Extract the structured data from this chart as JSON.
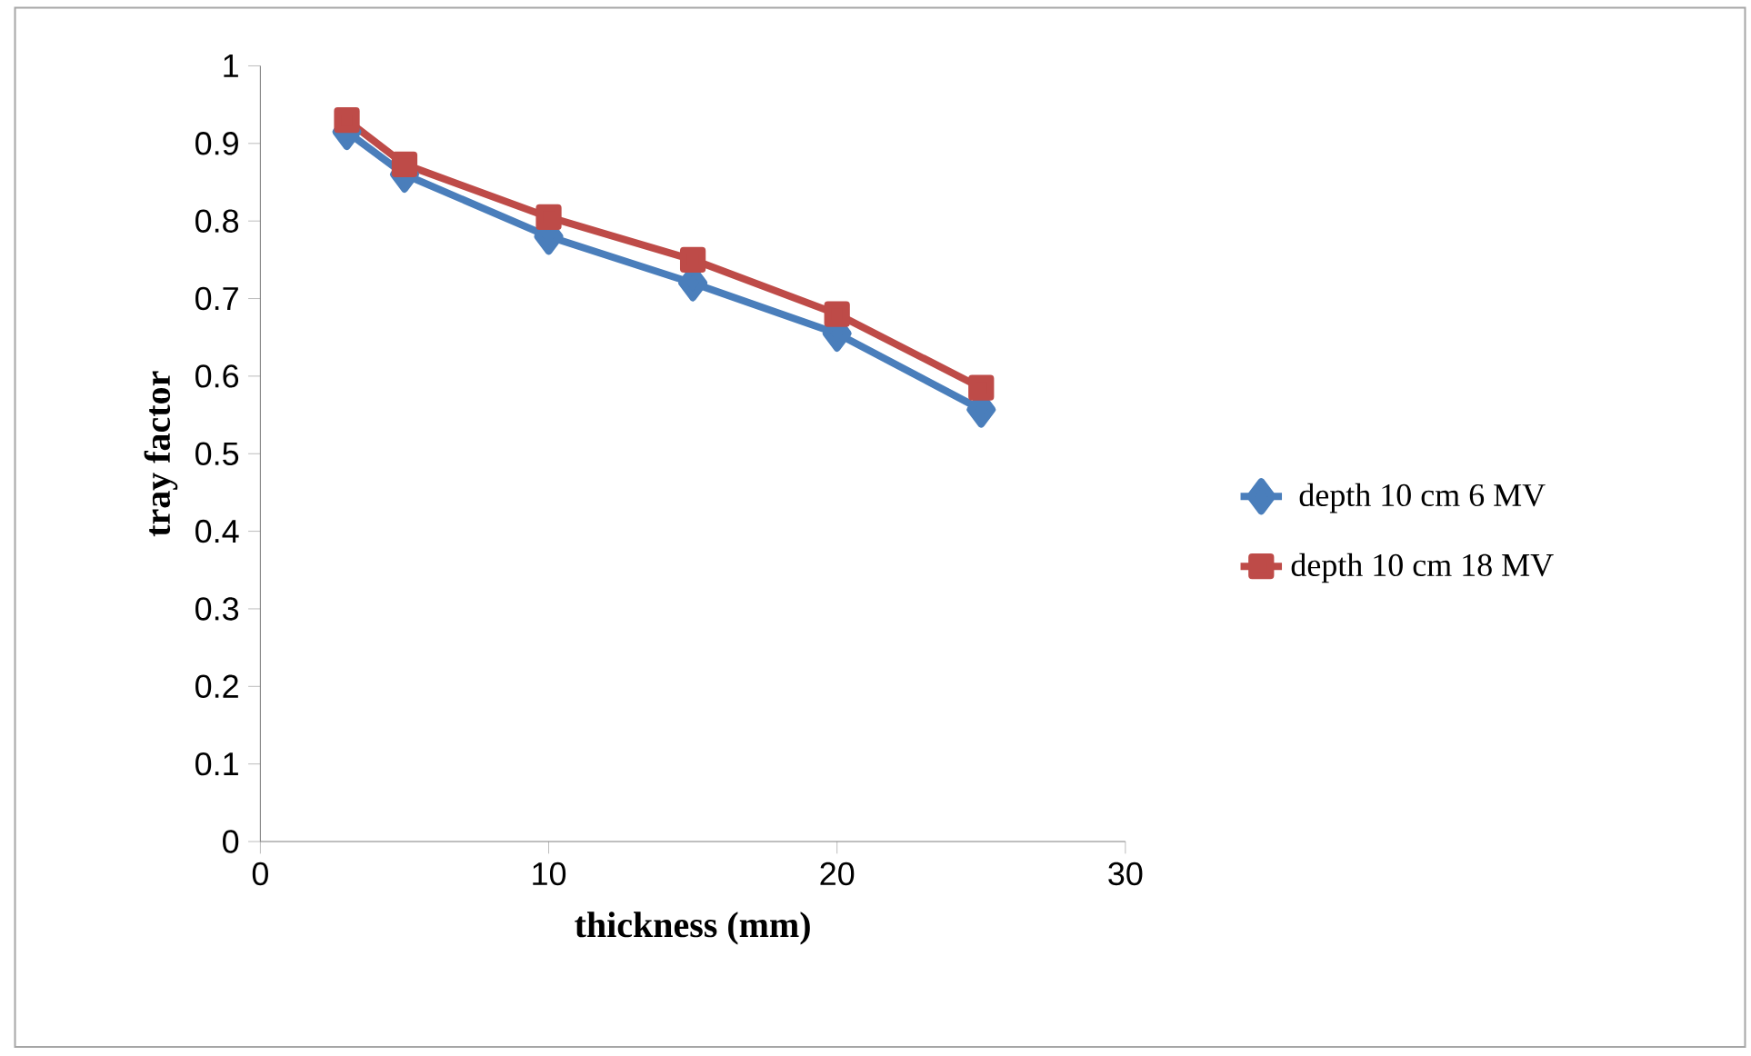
{
  "chart_data": {
    "type": "line",
    "xlabel": "thickness (mm)",
    "ylabel": "tray factor",
    "xlim": [
      0,
      30
    ],
    "xticks": [
      0,
      10,
      20,
      30
    ],
    "ylim": [
      0,
      1
    ],
    "yticks": [
      0,
      0.1,
      0.2,
      0.3,
      0.4,
      0.5,
      0.6,
      0.7,
      0.8,
      0.9,
      1
    ],
    "grid": false,
    "legend": "right",
    "line_style": "solid",
    "x": [
      3,
      5,
      10,
      15,
      20,
      25
    ],
    "series": [
      {
        "name": "depth 10 cm 6 MV",
        "color": "#4a7ebb",
        "marker": "diamond",
        "values": [
          0.915,
          0.86,
          0.78,
          0.72,
          0.655,
          0.557
        ]
      },
      {
        "name": "depth 10 cm 18 MV",
        "color": "#be4b48",
        "marker": "square",
        "values": [
          0.93,
          0.873,
          0.805,
          0.75,
          0.68,
          0.585
        ]
      }
    ]
  }
}
